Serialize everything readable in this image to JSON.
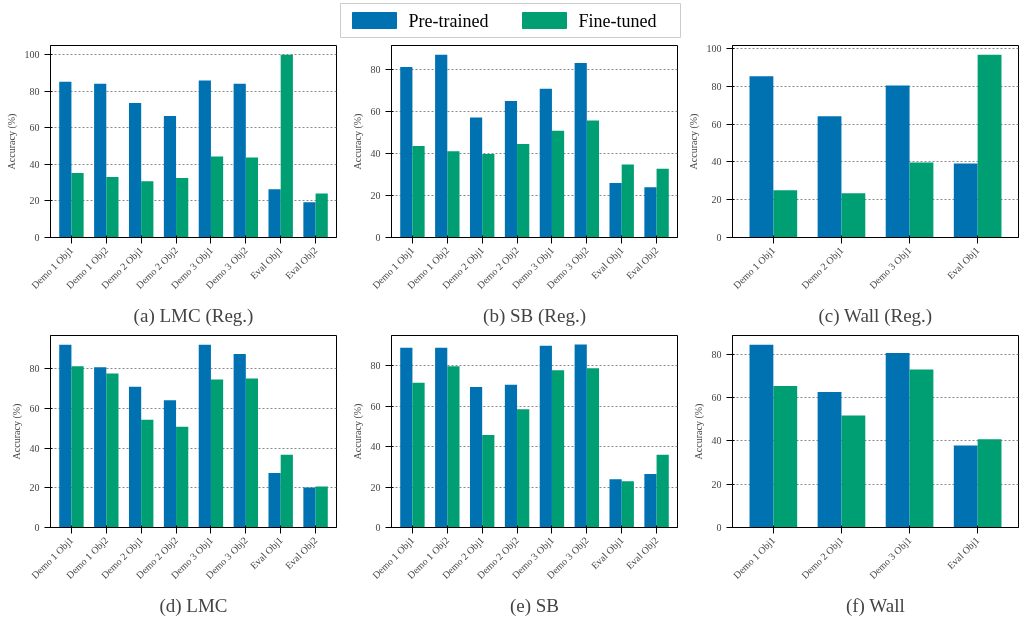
{
  "chart_data": [
    {
      "type": "bar",
      "title": "(a) LMC (Reg.)",
      "ylabel": "Accuracy (%)",
      "legend": "top",
      "grid": "y",
      "ylim": [
        0,
        105
      ],
      "yticks": [
        0,
        20,
        40,
        60,
        80,
        100
      ],
      "categories": [
        "Demo 1 Obj1",
        "Demo 1 Obj2",
        "Demo 2 Obj1",
        "Demo 2 Obj2",
        "Demo 3 Obj1",
        "Demo 3 Obj2",
        "Eval Obj1",
        "Eval Obj2"
      ],
      "series": [
        {
          "name": "Pre-trained",
          "color": "#0072b2",
          "values": [
            85.2,
            84.1,
            73.5,
            66.4,
            85.8,
            84.1,
            26.4,
            19.3
          ]
        },
        {
          "name": "Fine-tuned",
          "color": "#009e73",
          "values": [
            35.3,
            33.1,
            30.8,
            32.5,
            44.3,
            43.7,
            100,
            24.1
          ]
        }
      ]
    },
    {
      "type": "bar",
      "title": "(b) SB (Reg.)",
      "ylabel": "Accuracy (%)",
      "grid": "y",
      "ylim": [
        0,
        91.6
      ],
      "yticks": [
        0,
        20,
        40,
        60,
        80
      ],
      "categories": [
        "Demo 1 Obj1",
        "Demo 1 Obj2",
        "Demo 2 Obj1",
        "Demo 2 Obj2",
        "Demo 3 Obj1",
        "Demo 3 Obj2",
        "Eval Obj1",
        "Eval Obj2"
      ],
      "series": [
        {
          "color": "#0072b2",
          "values": [
            81.3,
            87.2,
            57.3,
            65.1,
            71.0,
            83.3,
            26.0,
            24.0
          ]
        },
        {
          "color": "#009e73",
          "values": [
            43.6,
            41.1,
            39.8,
            44.6,
            50.9,
            55.8,
            34.8,
            32.8
          ]
        }
      ]
    },
    {
      "type": "bar",
      "title": "(c) Wall (Reg.)",
      "ylabel": "Accuracy (%)",
      "grid": "y",
      "ylim": [
        0,
        101.6
      ],
      "yticks": [
        0,
        20,
        40,
        60,
        80,
        100
      ],
      "categories": [
        "Demo 1 Obj1",
        "Demo 2 Obj1",
        "Demo 3 Obj1",
        "Eval Obj1"
      ],
      "series": [
        {
          "color": "#0072b2",
          "values": [
            85.3,
            64.1,
            80.4,
            39.1
          ]
        },
        {
          "color": "#009e73",
          "values": [
            25.0,
            23.4,
            39.7,
            96.7
          ]
        }
      ]
    },
    {
      "type": "bar",
      "title": "(d) LMC",
      "ylabel": "Accuracy (%)",
      "grid": "y",
      "ylim": [
        0,
        96.7
      ],
      "yticks": [
        0,
        20,
        40,
        60,
        80
      ],
      "categories": [
        "Demo 1 Obj1",
        "Demo 1 Obj2",
        "Demo 2 Obj1",
        "Demo 2 Obj2",
        "Demo 3 Obj1",
        "Demo 3 Obj2",
        "Eval Obj1",
        "Eval Obj2"
      ],
      "series": [
        {
          "color": "#0072b2",
          "values": [
            92.1,
            80.7,
            70.9,
            64.1,
            92.1,
            87.4,
            27.4,
            20.2
          ]
        },
        {
          "color": "#009e73",
          "values": [
            81.2,
            77.6,
            54.3,
            50.7,
            74.5,
            75.0,
            36.7,
            20.7
          ]
        }
      ]
    },
    {
      "type": "bar",
      "title": "(e) SB",
      "ylabel": "Accuracy (%)",
      "grid": "y",
      "ylim": [
        0,
        94.9
      ],
      "yticks": [
        0,
        20,
        40,
        60,
        80
      ],
      "categories": [
        "Demo 1 Obj1",
        "Demo 1 Obj2",
        "Demo 2 Obj1",
        "Demo 2 Obj2",
        "Demo 3 Obj1",
        "Demo 3 Obj2",
        "Eval Obj1",
        "Eval Obj2"
      ],
      "series": [
        {
          "color": "#0072b2",
          "values": [
            88.8,
            88.8,
            69.5,
            70.6,
            89.8,
            90.4,
            23.9,
            26.4
          ]
        },
        {
          "color": "#009e73",
          "values": [
            71.6,
            79.7,
            45.7,
            58.4,
            77.7,
            78.7,
            22.8,
            36.0
          ]
        }
      ]
    },
    {
      "type": "bar",
      "title": "(f) Wall",
      "ylabel": "Accuracy (%)",
      "grid": "y",
      "ylim": [
        0,
        88.7
      ],
      "yticks": [
        0,
        20,
        40,
        60,
        80
      ],
      "categories": [
        "Demo 1 Obj1",
        "Demo 2 Obj1",
        "Demo 3 Obj1",
        "Eval Obj1"
      ],
      "series": [
        {
          "color": "#0072b2",
          "values": [
            84.4,
            62.6,
            80.6,
            37.9
          ]
        },
        {
          "color": "#009e73",
          "values": [
            65.4,
            51.7,
            73.0,
            40.8
          ]
        }
      ]
    }
  ]
}
